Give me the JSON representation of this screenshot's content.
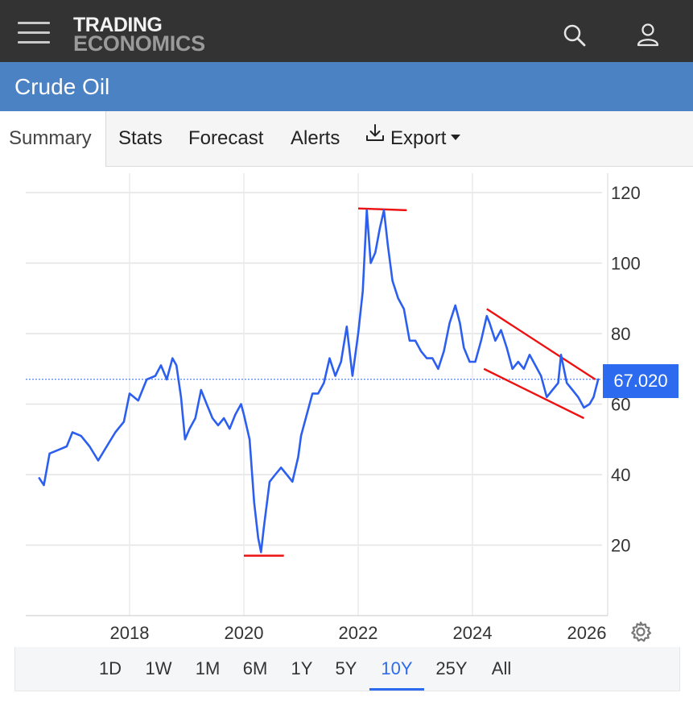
{
  "header": {
    "logo_line1": "TRADING",
    "logo_line2": "ECONOMICS"
  },
  "page_title": "Crude Oil",
  "tabs": [
    {
      "label": "Summary",
      "active": true
    },
    {
      "label": "Stats",
      "active": false
    },
    {
      "label": "Forecast",
      "active": false
    },
    {
      "label": "Alerts",
      "active": false
    },
    {
      "label": "Export",
      "active": false
    }
  ],
  "icons": [
    "hamburger-icon",
    "search-icon",
    "user-icon",
    "download-icon",
    "caret-down-icon",
    "gear-icon"
  ],
  "colors": {
    "topbar": "#333333",
    "titlebar": "#4a82c3",
    "series": "#2c5ff0",
    "trendlines": "#ee1111",
    "accent": "#2c6bef"
  },
  "chart_data": {
    "type": "line",
    "y_ticks": [
      "120",
      "100",
      "80",
      "60",
      "40",
      "20"
    ],
    "y_tick_values": [
      120,
      100,
      80,
      60,
      40,
      20
    ],
    "x_ticks": [
      "2018",
      "2020",
      "2022",
      "2024",
      "2026"
    ],
    "x_tick_values": [
      2018,
      2020,
      2022,
      2024,
      2026
    ],
    "ylim": [
      0,
      120
    ],
    "xlim": [
      2016.4,
      2026.3
    ],
    "grid": true,
    "current_value": 67.02,
    "current_label": "67.020",
    "series": [
      {
        "points": [
          [
            2016.42,
            39
          ],
          [
            2016.5,
            37
          ],
          [
            2016.6,
            46
          ],
          [
            2016.75,
            47
          ],
          [
            2016.9,
            48
          ],
          [
            2017.0,
            52
          ],
          [
            2017.15,
            51
          ],
          [
            2017.3,
            48
          ],
          [
            2017.45,
            44
          ],
          [
            2017.6,
            48
          ],
          [
            2017.75,
            52
          ],
          [
            2017.9,
            55
          ],
          [
            2018.0,
            63
          ],
          [
            2018.15,
            61
          ],
          [
            2018.3,
            67
          ],
          [
            2018.45,
            68
          ],
          [
            2018.55,
            71
          ],
          [
            2018.65,
            67
          ],
          [
            2018.75,
            73
          ],
          [
            2018.82,
            71
          ],
          [
            2018.9,
            62
          ],
          [
            2018.97,
            50
          ],
          [
            2019.05,
            53
          ],
          [
            2019.15,
            56
          ],
          [
            2019.25,
            64
          ],
          [
            2019.35,
            60
          ],
          [
            2019.45,
            56
          ],
          [
            2019.55,
            54
          ],
          [
            2019.65,
            56
          ],
          [
            2019.75,
            53
          ],
          [
            2019.85,
            57
          ],
          [
            2019.95,
            60
          ],
          [
            2020.0,
            57
          ],
          [
            2020.1,
            50
          ],
          [
            2020.18,
            32
          ],
          [
            2020.25,
            22
          ],
          [
            2020.3,
            18
          ],
          [
            2020.35,
            25
          ],
          [
            2020.45,
            38
          ],
          [
            2020.55,
            40
          ],
          [
            2020.65,
            42
          ],
          [
            2020.75,
            40
          ],
          [
            2020.85,
            38
          ],
          [
            2020.95,
            45
          ],
          [
            2021.0,
            51
          ],
          [
            2021.1,
            57
          ],
          [
            2021.2,
            63
          ],
          [
            2021.3,
            63
          ],
          [
            2021.4,
            66
          ],
          [
            2021.5,
            73
          ],
          [
            2021.6,
            68
          ],
          [
            2021.7,
            72
          ],
          [
            2021.8,
            82
          ],
          [
            2021.9,
            68
          ],
          [
            2022.0,
            80
          ],
          [
            2022.08,
            92
          ],
          [
            2022.15,
            115
          ],
          [
            2022.22,
            100
          ],
          [
            2022.3,
            103
          ],
          [
            2022.38,
            110
          ],
          [
            2022.45,
            115
          ],
          [
            2022.52,
            105
          ],
          [
            2022.6,
            95
          ],
          [
            2022.7,
            90
          ],
          [
            2022.8,
            87
          ],
          [
            2022.9,
            78
          ],
          [
            2023.0,
            78
          ],
          [
            2023.1,
            75
          ],
          [
            2023.2,
            73
          ],
          [
            2023.3,
            73
          ],
          [
            2023.4,
            70
          ],
          [
            2023.5,
            75
          ],
          [
            2023.6,
            83
          ],
          [
            2023.7,
            88
          ],
          [
            2023.78,
            83
          ],
          [
            2023.85,
            76
          ],
          [
            2023.95,
            72
          ],
          [
            2024.05,
            72
          ],
          [
            2024.15,
            78
          ],
          [
            2024.25,
            85
          ],
          [
            2024.3,
            83
          ],
          [
            2024.4,
            78
          ],
          [
            2024.5,
            81
          ],
          [
            2024.6,
            76
          ],
          [
            2024.7,
            70
          ],
          [
            2024.8,
            72
          ],
          [
            2024.9,
            70
          ],
          [
            2025.0,
            74
          ],
          [
            2025.1,
            71
          ],
          [
            2025.2,
            68
          ],
          [
            2025.3,
            62
          ],
          [
            2025.4,
            64
          ],
          [
            2025.5,
            66
          ],
          [
            2025.55,
            74
          ],
          [
            2025.65,
            66
          ],
          [
            2025.75,
            64
          ],
          [
            2025.85,
            62
          ],
          [
            2025.95,
            59
          ],
          [
            2026.05,
            60
          ],
          [
            2026.12,
            62
          ],
          [
            2026.2,
            67.02
          ]
        ]
      }
    ],
    "annotations": {
      "lines": [
        {
          "x": [
            2020.0,
            2020.7
          ],
          "y": [
            17,
            17
          ]
        },
        {
          "x": [
            2022.0,
            2022.85
          ],
          "y": [
            115.5,
            115
          ]
        },
        {
          "x": [
            2024.25,
            2026.15
          ],
          "y": [
            87,
            67
          ]
        },
        {
          "x": [
            2024.2,
            2025.95
          ],
          "y": [
            70,
            56
          ]
        }
      ]
    }
  },
  "ranges": [
    {
      "label": "1D",
      "active": false
    },
    {
      "label": "1W",
      "active": false
    },
    {
      "label": "1M",
      "active": false
    },
    {
      "label": "6M",
      "active": false
    },
    {
      "label": "1Y",
      "active": false
    },
    {
      "label": "5Y",
      "active": false
    },
    {
      "label": "10Y",
      "active": true
    },
    {
      "label": "25Y",
      "active": false
    },
    {
      "label": "All",
      "active": false
    }
  ]
}
